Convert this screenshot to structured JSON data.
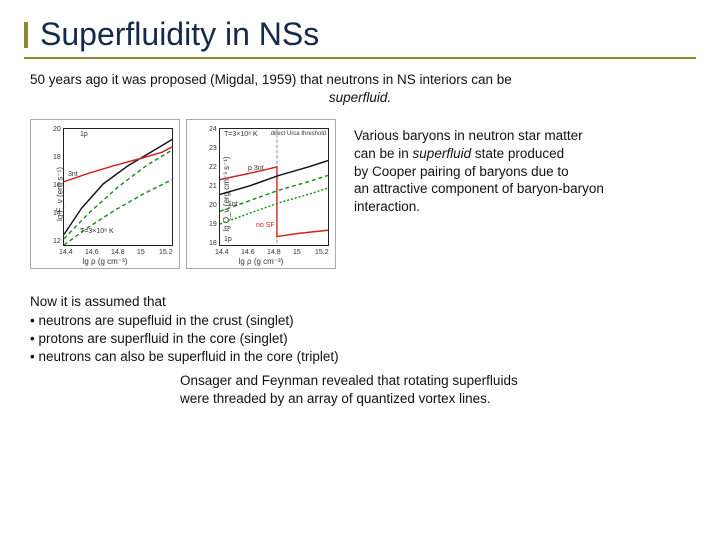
{
  "title": "Superfluidity in NSs",
  "intro_line": "50 years ago it was proposed (Migdal, 1959) that neutrons in NS interiors can be",
  "intro_word": "superfluid.",
  "side_paragraph": {
    "l1": "Various baryons in neutron star matter",
    "l2a": "can be in ",
    "l2b": "superfluid",
    "l2c": " state produced",
    "l3": "by Cooper pairing of baryons due to",
    "l4": "an attractive component of baryon-baryon",
    "l5": "interaction."
  },
  "assume": {
    "head": "Now it is assumed that",
    "b1": "• neutrons are supefluid in the crust (singlet)",
    "b2": "• protons are superfluid in the core (singlet)",
    "b3": "• neutrons can also be superfluid in the core (triplet)"
  },
  "onsager": {
    "l1": "Onsager and Feynman revealed that rotating superfluids",
    "l2": "were threaded by an array of quantized vortex lines."
  },
  "chartL": {
    "ylabel": "lg F_ν (erg s⁻¹)",
    "xlabel": "lg ρ (g cm⁻³)",
    "x_ticks": [
      "14.4",
      "14.6",
      "14.8",
      "15",
      "15.2"
    ],
    "y_ticks": [
      "12",
      "14",
      "16",
      "18",
      "20"
    ],
    "ann_1p": "1p",
    "ann_3nt": "3nt",
    "ann_T": "T=3×10⁸ K",
    "curves": {
      "black": {
        "color": "#111111",
        "dash": "",
        "pts": [
          [
            0,
            10
          ],
          [
            18,
            35
          ],
          [
            40,
            58
          ],
          [
            65,
            75
          ],
          [
            92,
            90
          ],
          [
            110,
            100
          ]
        ]
      },
      "red": {
        "color": "#cc2222",
        "dash": "",
        "pts": [
          [
            0,
            60
          ],
          [
            25,
            68
          ],
          [
            50,
            75
          ],
          [
            78,
            82
          ],
          [
            100,
            88
          ],
          [
            110,
            93
          ]
        ]
      },
      "greenA": {
        "color": "#1f8a1f",
        "dash": "4 3",
        "pts": [
          [
            0,
            0
          ],
          [
            22,
            15
          ],
          [
            50,
            32
          ],
          [
            80,
            48
          ],
          [
            110,
            62
          ]
        ]
      },
      "greenB": {
        "color": "#1f8a1f",
        "dash": "4 3",
        "pts": [
          [
            0,
            6
          ],
          [
            25,
            30
          ],
          [
            55,
            55
          ],
          [
            85,
            76
          ],
          [
            110,
            90
          ]
        ]
      }
    }
  },
  "chartR": {
    "ylabel": "lg Q_ν (erg cm⁻³ s⁻¹)",
    "xlabel": "lg ρ (g cm⁻³)",
    "x_ticks": [
      "14.4",
      "14.6",
      "14.8",
      "15",
      "15.2"
    ],
    "y_ticks": [
      "18",
      "19",
      "20",
      "21",
      "22",
      "23",
      "24"
    ],
    "ann_T": "T=3×10⁸ K",
    "ann_p1nt": "p 3nt",
    "ann_1nt": "1nt",
    "ann_1p": "1p",
    "ann_noSF": "no SF",
    "ann_dU": "direct Urca threshold",
    "curves": {
      "red": {
        "color": "#cc2222",
        "dash": "",
        "pts": [
          [
            0,
            62
          ],
          [
            20,
            66
          ],
          [
            40,
            70
          ],
          [
            58,
            74
          ],
          [
            58,
            8
          ],
          [
            80,
            11
          ],
          [
            110,
            14
          ]
        ]
      },
      "blk": {
        "color": "#111111",
        "dash": "",
        "pts": [
          [
            0,
            48
          ],
          [
            30,
            56
          ],
          [
            60,
            66
          ],
          [
            90,
            74
          ],
          [
            110,
            80
          ]
        ]
      },
      "grnC": {
        "color": "#1f8a1f",
        "dash": "4 3",
        "pts": [
          [
            0,
            32
          ],
          [
            30,
            42
          ],
          [
            60,
            52
          ],
          [
            90,
            60
          ],
          [
            110,
            66
          ]
        ]
      },
      "grnD": {
        "color": "#1f8a1f",
        "dash": "2 2",
        "pts": [
          [
            0,
            20
          ],
          [
            30,
            30
          ],
          [
            60,
            40
          ],
          [
            90,
            48
          ],
          [
            110,
            54
          ]
        ]
      }
    },
    "threshold_x": 58
  },
  "colors": {
    "title": "#152a4a",
    "accent": "#8a8a32",
    "body": "#111111"
  }
}
